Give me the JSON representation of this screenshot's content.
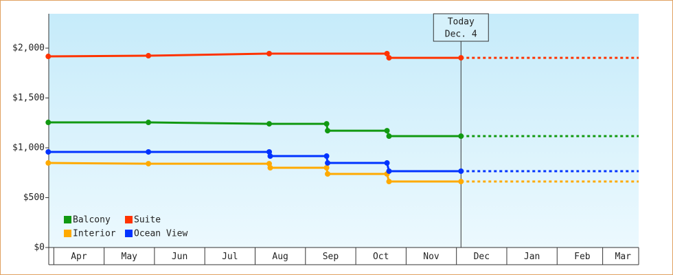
{
  "chart_data": {
    "type": "line",
    "ylim": [
      0,
      2345
    ],
    "yticks": [
      {
        "value": 0,
        "label": "$0"
      },
      {
        "value": 500,
        "label": "$500"
      },
      {
        "value": 1000,
        "label": "$1,000"
      },
      {
        "value": 1500,
        "label": "$1,500"
      },
      {
        "value": 2000,
        "label": "$2,000"
      }
    ],
    "xlim": [
      -0.1,
      11.62
    ],
    "xticks": [
      {
        "value": 0.5,
        "label": "Apr"
      },
      {
        "value": 1.5,
        "label": "May"
      },
      {
        "value": 2.5,
        "label": "Jun"
      },
      {
        "value": 3.5,
        "label": "Jul"
      },
      {
        "value": 4.5,
        "label": "Aug"
      },
      {
        "value": 5.5,
        "label": "Sep"
      },
      {
        "value": 6.5,
        "label": "Oct"
      },
      {
        "value": 7.5,
        "label": "Nov"
      },
      {
        "value": 8.5,
        "label": "Dec"
      },
      {
        "value": 9.5,
        "label": "Jan"
      },
      {
        "value": 10.5,
        "label": "Feb"
      },
      {
        "value": 11.31,
        "label": "Mar"
      }
    ],
    "annotation": {
      "x": 8.09,
      "lines": [
        "Today",
        "Dec. 4"
      ]
    },
    "legend": "lower left",
    "series": [
      {
        "name": "Balcony",
        "color": "#119911",
        "x": [
          -0.11,
          1.88,
          4.28,
          5.42,
          5.44,
          6.62,
          6.66,
          8.09
        ],
        "values": [
          1255,
          1255,
          1241,
          1241,
          1172,
          1172,
          1117,
          1117
        ]
      },
      {
        "name": "Suite",
        "color": "#ff3300",
        "x": [
          -0.11,
          1.88,
          4.28,
          6.62,
          6.66,
          8.09
        ],
        "values": [
          1917,
          1924,
          1945,
          1945,
          1903,
          1903
        ]
      },
      {
        "name": "Interior",
        "color": "#ffaa00",
        "x": [
          -0.11,
          1.88,
          4.28,
          4.3,
          5.42,
          5.44,
          6.62,
          6.66,
          8.09
        ],
        "values": [
          848,
          841,
          841,
          800,
          800,
          738,
          738,
          662,
          662
        ]
      },
      {
        "name": "Ocean View",
        "color": "#0033ff",
        "x": [
          -0.11,
          1.88,
          4.28,
          4.3,
          5.42,
          5.44,
          6.62,
          6.66,
          8.09
        ],
        "values": [
          959,
          959,
          959,
          917,
          917,
          848,
          848,
          766,
          766
        ]
      }
    ]
  }
}
